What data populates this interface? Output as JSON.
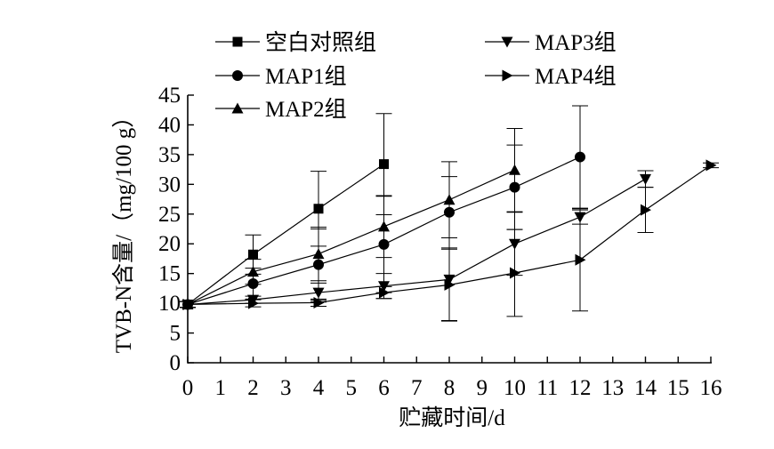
{
  "chart_data": {
    "type": "line",
    "xlabel": "贮藏时间/d",
    "ylabel": "TVB-N含量/（mg/100 g）",
    "xlim": [
      0,
      16
    ],
    "ylim": [
      0,
      45
    ],
    "xticks": [
      "0",
      "1",
      "2",
      "3",
      "4",
      "5",
      "6",
      "7",
      "8",
      "9",
      "10",
      "11",
      "12",
      "13",
      "14",
      "15",
      "16"
    ],
    "yticks": [
      "0",
      "5",
      "10",
      "15",
      "20",
      "25",
      "30",
      "35",
      "40",
      "45"
    ],
    "grid": false,
    "legend_position": "top",
    "series": [
      {
        "name": "空白对照组",
        "marker": "square",
        "x": [
          0,
          2,
          4,
          6
        ],
        "y": [
          9.8,
          18.2,
          25.9,
          33.4
        ],
        "err": [
          0.5,
          3.3,
          6.3,
          8.5
        ]
      },
      {
        "name": "MAP1组",
        "marker": "circle",
        "x": [
          0,
          2,
          4,
          6,
          8,
          10,
          12
        ],
        "y": [
          9.8,
          13.3,
          16.5,
          19.9,
          25.3,
          29.5,
          34.6
        ],
        "err": [
          0.5,
          2.6,
          6.0,
          8.1,
          6.0,
          7.1,
          8.6
        ]
      },
      {
        "name": "MAP2组",
        "marker": "triangle-up",
        "x": [
          0,
          2,
          4,
          6,
          8,
          10
        ],
        "y": [
          9.8,
          15.3,
          18.3,
          22.9,
          27.4,
          32.4
        ],
        "err": [
          0.5,
          2.1,
          4.5,
          5.2,
          6.4,
          7.0
        ]
      },
      {
        "name": "MAP3组",
        "marker": "triangle-down",
        "x": [
          0,
          2,
          4,
          6,
          8,
          10,
          12,
          14
        ],
        "y": [
          9.8,
          10.6,
          11.8,
          12.9,
          14.0,
          20.0,
          24.5,
          30.9
        ],
        "err": [
          0.5,
          0.6,
          1.6,
          2.1,
          7.0,
          5.3,
          1.2,
          1.4
        ]
      },
      {
        "name": "MAP4组",
        "marker": "triangle-right",
        "x": [
          0,
          2,
          4,
          6,
          8,
          10,
          12,
          14,
          16
        ],
        "y": [
          9.8,
          10.0,
          10.1,
          11.8,
          13.1,
          15.1,
          17.3,
          25.7,
          33.2
        ],
        "err": [
          0.5,
          0.6,
          0.6,
          1.0,
          6.0,
          7.3,
          8.6,
          3.8,
          0.4
        ]
      }
    ]
  }
}
